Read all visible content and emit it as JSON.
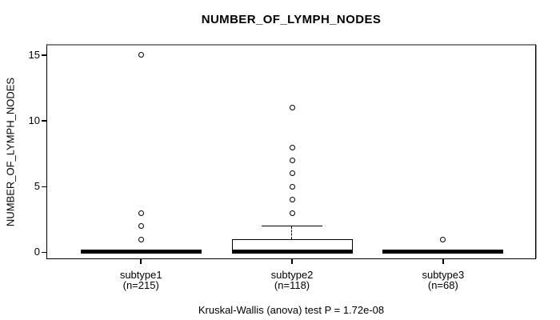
{
  "colors": {
    "background": "#ffffff",
    "line": "#000000",
    "frame_shadow": "#8e8e8e"
  },
  "chart_data": {
    "type": "boxplot",
    "title": "NUMBER_OF_LYMPH_NODES",
    "ylabel": "NUMBER_OF_LYMPH_NODES",
    "xlabel": "",
    "caption": "Kruskal-Wallis (anova) test P = 1.72e-08",
    "yticks": [
      0,
      5,
      10,
      15
    ],
    "ylim": [
      -0.52,
      15.79
    ],
    "grid": false,
    "legend": "none",
    "groups": [
      {
        "label": "subtype1",
        "n_label": "(n=215)",
        "n": 215,
        "whisker_low": 0,
        "q1": 0,
        "median": 0,
        "q3": 0,
        "whisker_high": 0,
        "outliers": [
          1,
          2,
          3,
          15
        ]
      },
      {
        "label": "subtype2",
        "n_label": "(n=118)",
        "n": 118,
        "whisker_low": 0,
        "q1": 0,
        "median": 0,
        "q3": 1,
        "whisker_high": 2,
        "outliers": [
          3,
          4,
          5,
          6,
          7,
          8,
          11
        ]
      },
      {
        "label": "subtype3",
        "n_label": "(n=68)",
        "n": 68,
        "whisker_low": 0,
        "q1": 0,
        "median": 0,
        "q3": 0,
        "whisker_high": 0,
        "outliers": [
          1
        ]
      }
    ]
  }
}
